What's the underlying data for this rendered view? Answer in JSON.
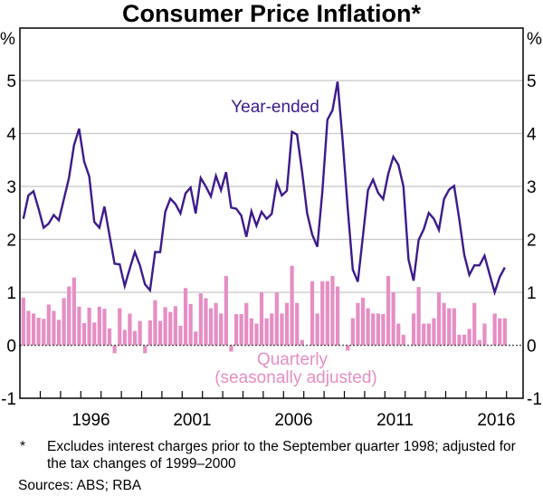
{
  "chart_data": {
    "type": "bar+line",
    "title": "Consumer Price Inflation*",
    "ylabel_left": "%",
    "ylabel_right": "%",
    "ylim": [
      -1,
      6
    ],
    "yticks": [
      -1,
      0,
      1,
      2,
      3,
      4,
      5
    ],
    "xlim": [
      1993.0,
      2017.8
    ],
    "xtick_labels": [
      "1996",
      "2001",
      "2006",
      "2011",
      "2016"
    ],
    "grid": true,
    "frequency": "quarterly",
    "x_start": "Mar 1993",
    "x_end": "Dec 2016",
    "colors": {
      "line": "#3d1a8c",
      "bar": "#e68ec4",
      "grid": "#c8c8c8",
      "annotation_quarterly": "#e68ec4"
    },
    "series": [
      {
        "name": "Year-ended",
        "type": "line",
        "values": [
          2.39,
          2.83,
          2.91,
          2.58,
          2.22,
          2.3,
          2.46,
          2.36,
          2.76,
          3.16,
          3.78,
          4.09,
          3.47,
          3.19,
          2.33,
          2.22,
          2.62,
          2.08,
          1.54,
          1.53,
          1.12,
          1.45,
          1.76,
          1.51,
          1.15,
          1.04,
          1.76,
          1.76,
          2.52,
          2.77,
          2.67,
          2.49,
          2.87,
          2.98,
          2.49,
          3.16,
          3.0,
          2.81,
          3.2,
          2.93,
          3.27,
          2.6,
          2.58,
          2.45,
          2.05,
          2.53,
          2.26,
          2.52,
          2.39,
          2.48,
          3.08,
          2.83,
          2.92,
          4.03,
          3.98,
          3.28,
          2.49,
          2.09,
          1.86,
          2.9,
          4.26,
          4.44,
          4.98,
          3.87,
          2.59,
          1.43,
          1.2,
          2.06,
          2.93,
          3.13,
          2.88,
          2.76,
          3.24,
          3.56,
          3.41,
          3.0,
          1.62,
          1.22,
          1.99,
          2.19,
          2.5,
          2.39,
          2.18,
          2.76,
          2.94,
          3.01,
          2.39,
          1.71,
          1.33,
          1.51,
          1.51,
          1.69,
          1.34,
          1.0,
          1.29,
          1.47
        ]
      },
      {
        "name": "Quarterly (seasonally adjusted)",
        "type": "bar",
        "values": [
          0.9,
          0.65,
          0.6,
          0.52,
          0.5,
          0.77,
          0.65,
          0.48,
          0.89,
          1.11,
          1.28,
          0.73,
          0.42,
          0.71,
          0.43,
          0.73,
          0.69,
          0.32,
          -0.15,
          0.7,
          0.29,
          0.6,
          0.27,
          0.46,
          -0.15,
          0.47,
          0.85,
          0.46,
          0.72,
          0.63,
          0.74,
          0.37,
          1.08,
          0.78,
          0.26,
          0.98,
          0.89,
          0.7,
          0.8,
          0.6,
          1.31,
          -0.12,
          0.59,
          0.59,
          0.8,
          0.51,
          0.41,
          1.0,
          0.51,
          0.6,
          1.0,
          0.6,
          0.8,
          1.5,
          0.8,
          0.1,
          0.0,
          1.21,
          0.6,
          1.21,
          1.21,
          1.31,
          1.11,
          0.0,
          -0.1,
          0.51,
          0.8,
          0.9,
          0.7,
          0.6,
          0.6,
          0.59,
          1.31,
          1.0,
          0.41,
          0.2,
          0.0,
          0.6,
          1.1,
          0.41,
          0.41,
          0.51,
          1.0,
          0.8,
          0.7,
          0.7,
          0.2,
          0.2,
          0.31,
          0.8,
          0.1,
          0.41,
          0.0,
          0.6,
          0.51,
          0.51
        ]
      }
    ],
    "annotations": {
      "line_label": "Year-ended",
      "bar_label_line1": "Quarterly",
      "bar_label_line2": "(seasonally adjusted)"
    }
  },
  "footnote": {
    "marker": "*",
    "text": "Excludes interest charges prior to the September quarter 1998; adjusted for the tax changes of 1999–2000"
  },
  "sources": "Sources:  ABS; RBA"
}
